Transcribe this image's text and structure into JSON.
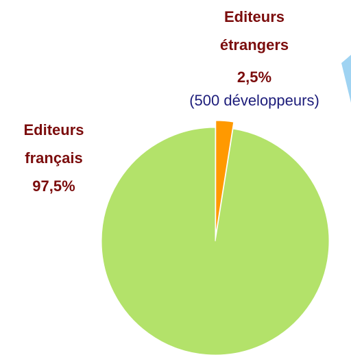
{
  "chart_data": {
    "type": "pie",
    "categories": [
      "Editeurs étrangers",
      "Editeurs français"
    ],
    "values": [
      2.5,
      97.5
    ],
    "value_labels": [
      "2,5%",
      "97,5%"
    ],
    "colors": [
      "#ff9900",
      "#b3e26a"
    ],
    "annotation": "(500 développeurs)"
  }
}
